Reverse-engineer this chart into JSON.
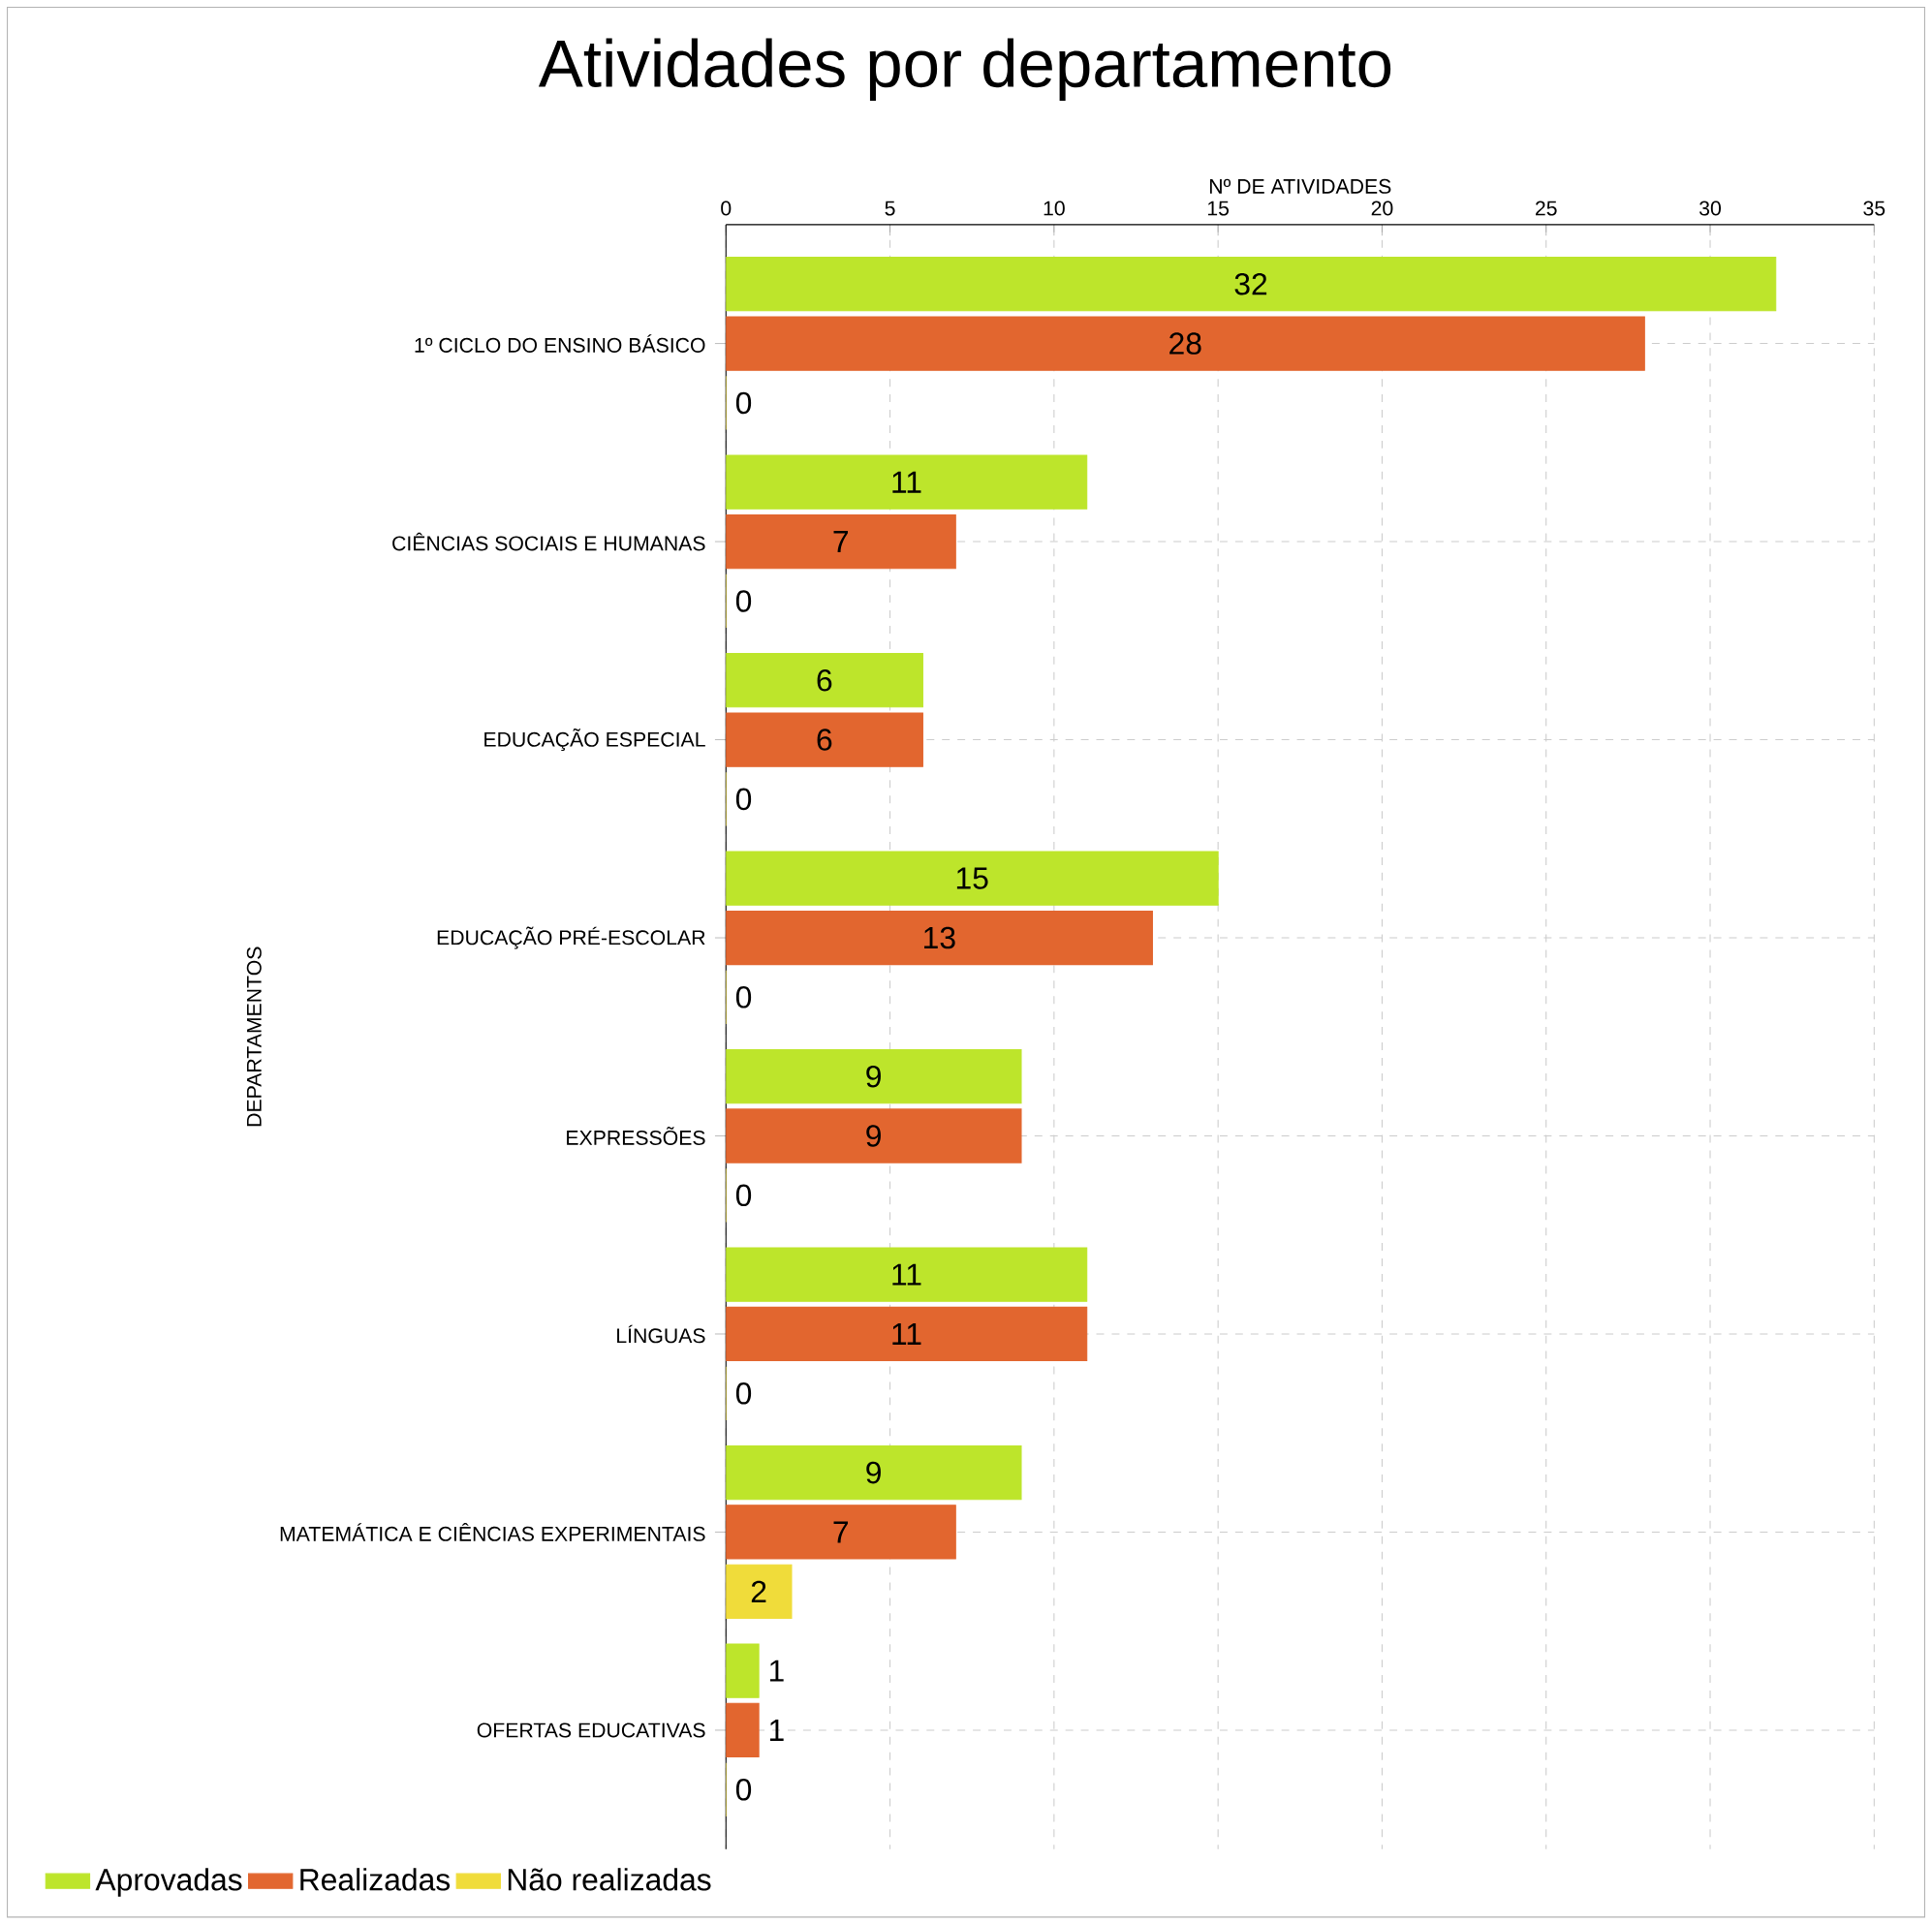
{
  "chart_data": {
    "type": "bar",
    "orientation": "horizontal",
    "title": "Atividades por departamento",
    "xlabel": "Nº DE ATIVIDADES",
    "ylabel": "DEPARTAMENTOS",
    "categories": [
      "1º CICLO DO ENSINO BÁSICO",
      "CIÊNCIAS SOCIAIS E HUMANAS",
      "EDUCAÇÃO ESPECIAL",
      "EDUCAÇÃO PRÉ-ESCOLAR",
      "EXPRESSÕES",
      "LÍNGUAS",
      "MATEMÁTICA E CIÊNCIAS EXPERIMENTAIS",
      "OFERTAS EDUCATIVAS"
    ],
    "series": [
      {
        "name": "Aprovadas",
        "color": "#bde52b",
        "values": [
          32,
          11,
          6,
          15,
          9,
          11,
          9,
          1
        ]
      },
      {
        "name": "Realizadas",
        "color": "#e2662f",
        "values": [
          28,
          7,
          6,
          13,
          9,
          11,
          7,
          1
        ]
      },
      {
        "name": "Não realizadas",
        "color": "#f0dc3a",
        "values": [
          0,
          0,
          0,
          0,
          0,
          0,
          2,
          0
        ]
      }
    ],
    "xlim": [
      0,
      35
    ],
    "xticks": [
      0,
      5,
      10,
      15,
      20,
      25,
      30,
      35
    ],
    "grid": true,
    "legend": "bottom",
    "data_labels": true
  }
}
